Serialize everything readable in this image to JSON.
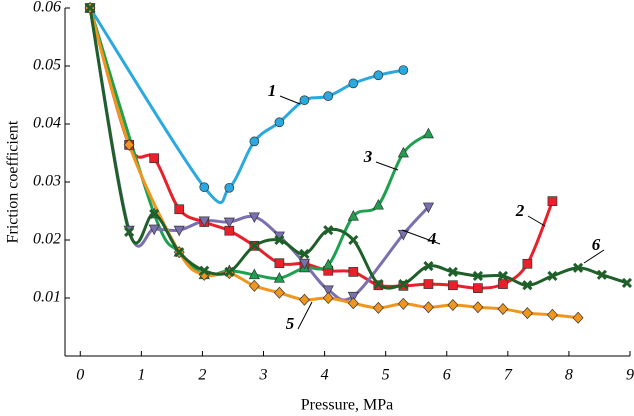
{
  "chart_data": {
    "type": "line",
    "x_label": "Pressure, MPa",
    "y_label": "Friction coefficient",
    "xlim": [
      -0.25,
      9
    ],
    "ylim": [
      0,
      0.06
    ],
    "xticks": [
      0,
      1,
      2,
      3,
      4,
      5,
      6,
      7,
      8,
      9
    ],
    "yticks": [
      0.01,
      0.02,
      0.03,
      0.04,
      0.05,
      0.06
    ],
    "grid": false,
    "series": [
      {
        "name": "1",
        "color": "#2aa8e0",
        "marker": "circle",
        "x": [
          0.16,
          2.03,
          2.44,
          2.85,
          3.26,
          3.67,
          4.06,
          4.47,
          4.88,
          5.29
        ],
        "values": [
          0.06,
          0.0291,
          0.029,
          0.037,
          0.0403,
          0.0441,
          0.0448,
          0.047,
          0.0484,
          0.0493
        ]
      },
      {
        "name": "2",
        "color": "#e8202a",
        "marker": "square",
        "x": [
          0.16,
          0.8,
          1.21,
          1.62,
          2.03,
          2.44,
          2.85,
          3.26,
          3.67,
          4.06,
          4.47,
          4.88,
          5.29,
          5.7,
          6.1,
          6.51,
          6.92,
          7.32,
          7.73
        ],
        "values": [
          0.06,
          0.0364,
          0.0341,
          0.0253,
          0.0231,
          0.0216,
          0.019,
          0.016,
          0.0159,
          0.0147,
          0.0145,
          0.0122,
          0.0121,
          0.0124,
          0.0122,
          0.0117,
          0.0124,
          0.0159,
          0.0267
        ]
      },
      {
        "name": "3",
        "color": "#1fa050",
        "marker": "triangle",
        "x": [
          0.16,
          1.21,
          1.62,
          2.03,
          2.44,
          2.85,
          3.26,
          3.67,
          4.06,
          4.47,
          4.88,
          5.29,
          5.7
        ],
        "values": [
          0.06,
          0.0245,
          0.0179,
          0.014,
          0.0147,
          0.014,
          0.0134,
          0.0152,
          0.0157,
          0.0241,
          0.026,
          0.035,
          0.0383
        ]
      },
      {
        "name": "4",
        "color": "#7b6fb0",
        "marker": "triangle-down",
        "x": [
          0.16,
          0.8,
          1.21,
          1.62,
          2.03,
          2.44,
          2.85,
          3.26,
          3.67,
          4.06,
          4.47,
          5.29,
          5.7
        ],
        "values": [
          0.06,
          0.0217,
          0.0219,
          0.0217,
          0.0233,
          0.0231,
          0.024,
          0.0207,
          0.016,
          0.0114,
          0.0103,
          0.021,
          0.0257
        ]
      },
      {
        "name": "5",
        "color": "#f0961e",
        "marker": "diamond",
        "x": [
          0.16,
          0.8,
          1.62,
          2.03,
          2.44,
          2.85,
          3.26,
          3.67,
          4.06,
          4.47,
          4.88,
          5.29,
          5.7,
          6.1,
          6.51,
          6.92,
          7.32,
          7.73,
          8.15
        ],
        "values": [
          0.06,
          0.0364,
          0.0179,
          0.014,
          0.0143,
          0.0121,
          0.0109,
          0.0097,
          0.01,
          0.0091,
          0.0083,
          0.009,
          0.0084,
          0.0088,
          0.0084,
          0.0081,
          0.0074,
          0.0071,
          0.0066
        ]
      },
      {
        "name": "6",
        "color": "#1e5f2a",
        "marker": "x",
        "x": [
          0.16,
          0.8,
          1.21,
          1.62,
          2.03,
          2.44,
          2.85,
          3.26,
          3.67,
          4.06,
          4.47,
          4.88,
          5.29,
          5.7,
          6.1,
          6.51,
          6.92,
          7.32,
          7.73,
          8.15,
          8.54,
          8.95
        ],
        "values": [
          0.06,
          0.0214,
          0.0245,
          0.0179,
          0.0147,
          0.0145,
          0.019,
          0.02,
          0.0176,
          0.0217,
          0.02,
          0.0124,
          0.0124,
          0.0155,
          0.0145,
          0.0138,
          0.0138,
          0.0122,
          0.0138,
          0.0152,
          0.014,
          0.0126
        ]
      }
    ]
  }
}
